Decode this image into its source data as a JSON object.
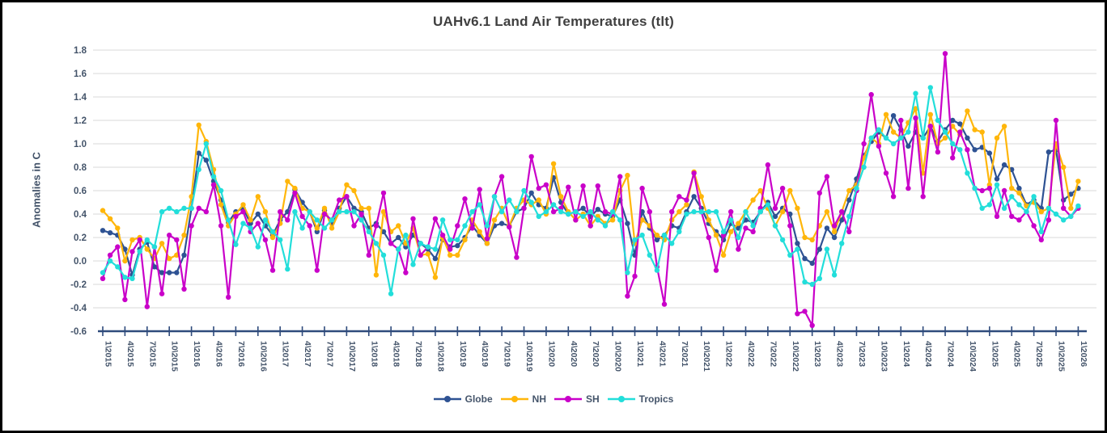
{
  "title": "UAHv6.1 Land Air Temperatures (tlt)",
  "chart_data": {
    "type": "line",
    "title": "UAHv6.1 Land Air Temperatures (tlt)",
    "xlabel": "",
    "ylabel": "Anomalies in C",
    "ylim": [
      -0.6,
      1.8
    ],
    "ytick_step": 0.2,
    "y_ticks": [
      "1.8",
      "1.6",
      "1.4",
      "1.2",
      "1.0",
      "0.8",
      "0.6",
      "0.4",
      "0.2",
      "0.0",
      "-0.2",
      "-0.4",
      "-0.6"
    ],
    "grid": "horizontal",
    "legend_position": "bottom",
    "x_label_every_months": 3,
    "x_labels": [
      "1\\2015",
      "4\\2015",
      "7\\2015",
      "10\\2015",
      "1\\2016",
      "4\\2016",
      "7\\2016",
      "10\\2016",
      "1\\2017",
      "4\\2017",
      "7\\2017",
      "10\\2017",
      "1\\2018",
      "4\\2018",
      "7\\2018",
      "10\\2018",
      "1\\2019",
      "4\\2019",
      "7\\2019",
      "10\\2019",
      "1\\2020",
      "4\\2020",
      "7\\2020",
      "10\\2020",
      "1\\2021",
      "4\\2021",
      "7\\2021",
      "10\\2021",
      "1\\2022",
      "4\\2022",
      "7\\2022",
      "10\\2022",
      "1\\2023",
      "4\\2023",
      "7\\2023",
      "10\\2023",
      "1\\2024",
      "4\\2024",
      "7\\2024",
      "10\\2024",
      "1\\2025",
      "4\\2025",
      "7\\2025",
      "10\\2025",
      "1\\2026"
    ],
    "colors": {
      "axis": "#2F4B7C",
      "grid": "#D9D9D9",
      "title_text": "#3F3F3F",
      "axis_text": "#44546A"
    },
    "series": [
      {
        "name": "Globe",
        "color": "#2E5293",
        "values": [
          0.26,
          0.24,
          0.22,
          0.1,
          -0.12,
          0.1,
          0.16,
          -0.05,
          -0.1,
          -0.1,
          -0.1,
          0.05,
          0.45,
          0.92,
          0.86,
          0.68,
          0.52,
          0.33,
          0.42,
          0.45,
          0.32,
          0.4,
          0.3,
          0.22,
          0.35,
          0.42,
          0.61,
          0.5,
          0.42,
          0.25,
          0.43,
          0.32,
          0.45,
          0.55,
          0.45,
          0.42,
          0.28,
          0.32,
          0.25,
          0.15,
          0.2,
          0.12,
          0.22,
          0.15,
          0.1,
          0.02,
          0.18,
          0.12,
          0.13,
          0.2,
          0.3,
          0.22,
          0.15,
          0.3,
          0.32,
          0.3,
          0.42,
          0.45,
          0.58,
          0.48,
          0.45,
          0.71,
          0.5,
          0.4,
          0.42,
          0.45,
          0.38,
          0.44,
          0.4,
          0.38,
          0.52,
          0.32,
          0.05,
          0.42,
          0.28,
          0.18,
          0.22,
          0.3,
          0.28,
          0.42,
          0.55,
          0.45,
          0.32,
          0.25,
          0.18,
          0.32,
          0.28,
          0.35,
          0.33,
          0.42,
          0.5,
          0.38,
          0.45,
          0.4,
          0.15,
          0.02,
          -0.02,
          0.1,
          0.28,
          0.2,
          0.35,
          0.52,
          0.7,
          0.9,
          1.02,
          1.1,
          1.05,
          1.24,
          1.12,
          0.98,
          1.1,
          1.05,
          1.15,
          1.02,
          1.12,
          1.2,
          1.17,
          1.05,
          0.95,
          0.97,
          0.92,
          0.7,
          0.82,
          0.78,
          0.62,
          0.48,
          0.52,
          0.45,
          0.93,
          0.95,
          0.52,
          0.57,
          0.62
        ]
      },
      {
        "name": "NH",
        "color": "#FFB60A",
        "values": [
          0.43,
          0.36,
          0.28,
          0.0,
          0.18,
          0.2,
          0.1,
          0.02,
          0.15,
          0.02,
          0.05,
          0.22,
          0.55,
          1.16,
          1.02,
          0.78,
          0.48,
          0.3,
          0.4,
          0.48,
          0.35,
          0.55,
          0.42,
          0.2,
          0.32,
          0.68,
          0.62,
          0.45,
          0.42,
          0.28,
          0.45,
          0.28,
          0.42,
          0.65,
          0.6,
          0.45,
          0.45,
          -0.12,
          0.42,
          0.25,
          0.3,
          0.15,
          0.28,
          0.05,
          0.06,
          -0.14,
          0.2,
          0.05,
          0.05,
          0.18,
          0.35,
          0.25,
          0.15,
          0.35,
          0.45,
          0.3,
          0.45,
          0.52,
          0.48,
          0.52,
          0.4,
          0.83,
          0.55,
          0.42,
          0.35,
          0.4,
          0.3,
          0.38,
          0.32,
          0.35,
          0.6,
          0.73,
          0.15,
          0.35,
          0.3,
          0.22,
          0.18,
          0.35,
          0.42,
          0.48,
          0.76,
          0.55,
          0.35,
          0.22,
          0.05,
          0.25,
          0.32,
          0.42,
          0.52,
          0.6,
          0.45,
          0.3,
          0.42,
          0.6,
          0.45,
          0.2,
          0.18,
          0.3,
          0.42,
          0.25,
          0.42,
          0.6,
          0.65,
          0.88,
          1.05,
          1.0,
          1.25,
          1.1,
          1.05,
          1.18,
          1.3,
          0.75,
          1.25,
          1.0,
          1.05,
          1.15,
          1.08,
          1.28,
          1.12,
          1.1,
          0.65,
          1.05,
          1.15,
          0.62,
          0.58,
          0.47,
          0.5,
          0.42,
          0.45,
          1.0,
          0.8,
          0.45,
          0.68
        ]
      },
      {
        "name": "SH",
        "color": "#C900C9",
        "values": [
          -0.15,
          0.05,
          0.12,
          -0.33,
          0.08,
          0.18,
          -0.39,
          0.12,
          -0.28,
          0.22,
          0.18,
          -0.24,
          0.3,
          0.45,
          0.42,
          0.65,
          0.3,
          -0.31,
          0.38,
          0.42,
          0.25,
          0.32,
          0.18,
          -0.08,
          0.42,
          0.35,
          0.58,
          0.38,
          0.3,
          -0.08,
          0.4,
          0.35,
          0.52,
          0.55,
          0.3,
          0.4,
          0.05,
          0.3,
          0.58,
          0.15,
          0.1,
          -0.1,
          0.36,
          0.05,
          0.12,
          0.36,
          0.22,
          0.1,
          0.3,
          0.53,
          0.28,
          0.61,
          0.19,
          0.55,
          0.72,
          0.29,
          0.03,
          0.45,
          0.89,
          0.62,
          0.65,
          0.42,
          0.45,
          0.63,
          0.35,
          0.64,
          0.3,
          0.64,
          0.42,
          0.4,
          0.72,
          -0.3,
          -0.13,
          0.62,
          0.42,
          -0.05,
          -0.37,
          0.42,
          0.55,
          0.52,
          0.75,
          0.42,
          0.2,
          -0.08,
          0.22,
          0.42,
          0.1,
          0.28,
          0.25,
          0.45,
          0.82,
          0.45,
          0.62,
          0.3,
          -0.45,
          -0.43,
          -0.55,
          0.58,
          0.72,
          0.3,
          0.42,
          0.25,
          0.6,
          1.0,
          1.42,
          0.98,
          0.75,
          0.55,
          1.2,
          0.62,
          1.22,
          0.55,
          1.15,
          0.93,
          1.77,
          0.88,
          1.1,
          0.95,
          0.62,
          0.6,
          0.62,
          0.38,
          0.6,
          0.38,
          0.35,
          0.42,
          0.3,
          0.18,
          0.35,
          1.2,
          0.45,
          0.38,
          0.45
        ]
      },
      {
        "name": "Tropics",
        "color": "#22DEDA",
        "values": [
          -0.1,
          0.0,
          -0.05,
          -0.14,
          -0.15,
          0.08,
          0.18,
          0.12,
          0.42,
          0.45,
          0.42,
          0.45,
          0.45,
          0.78,
          1.0,
          0.72,
          0.6,
          0.35,
          0.14,
          0.32,
          0.28,
          0.12,
          0.35,
          0.25,
          0.18,
          -0.07,
          0.42,
          0.28,
          0.42,
          0.35,
          0.28,
          0.35,
          0.42,
          0.42,
          0.42,
          0.35,
          0.25,
          0.15,
          0.05,
          -0.28,
          0.1,
          0.22,
          -0.03,
          0.15,
          0.12,
          0.1,
          0.35,
          0.18,
          0.18,
          0.3,
          0.42,
          0.48,
          0.3,
          0.55,
          0.42,
          0.52,
          0.42,
          0.6,
          0.5,
          0.38,
          0.42,
          0.48,
          0.42,
          0.4,
          0.42,
          0.38,
          0.42,
          0.35,
          0.3,
          0.42,
          0.35,
          -0.1,
          0.18,
          0.22,
          0.05,
          -0.08,
          0.22,
          0.15,
          0.25,
          0.4,
          0.42,
          0.42,
          0.42,
          0.42,
          0.25,
          0.35,
          0.2,
          0.42,
          0.3,
          0.42,
          0.48,
          0.3,
          0.18,
          0.05,
          0.1,
          -0.18,
          -0.2,
          -0.15,
          0.1,
          -0.12,
          0.15,
          0.38,
          0.62,
          0.8,
          1.05,
          1.12,
          1.05,
          1.0,
          1.05,
          1.1,
          1.43,
          1.05,
          1.48,
          1.2,
          1.1,
          1.0,
          0.95,
          0.75,
          0.62,
          0.45,
          0.48,
          0.65,
          0.45,
          0.55,
          0.48,
          0.42,
          0.55,
          0.25,
          0.45,
          0.4,
          0.35,
          0.38,
          0.47
        ]
      }
    ]
  }
}
